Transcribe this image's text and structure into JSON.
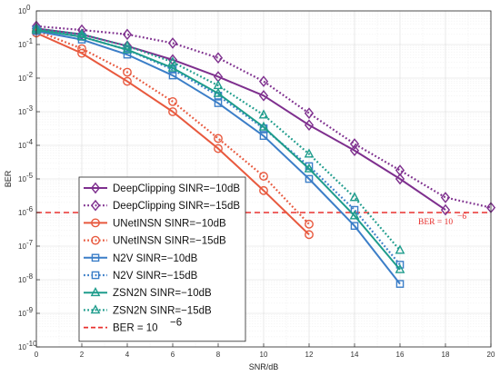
{
  "chart_data": {
    "type": "line",
    "title": "",
    "xlabel": "SNR/dB",
    "ylabel": "BER",
    "xlim": [
      0,
      20
    ],
    "ylim_log10": [
      -10,
      0
    ],
    "log_y": true,
    "grid": true,
    "legend_position": "lower-left",
    "x_ticks": [
      "0",
      "2",
      "4",
      "6",
      "8",
      "10",
      "12",
      "14",
      "16",
      "18",
      "20"
    ],
    "y_ticks": [
      {
        "base": "10",
        "exp": "0"
      },
      {
        "base": "10",
        "exp": "-1"
      },
      {
        "base": "10",
        "exp": "-2"
      },
      {
        "base": "10",
        "exp": "-3"
      },
      {
        "base": "10",
        "exp": "-4"
      },
      {
        "base": "10",
        "exp": "-5"
      },
      {
        "base": "10",
        "exp": "-6"
      },
      {
        "base": "10",
        "exp": "-7"
      },
      {
        "base": "10",
        "exp": "-8"
      },
      {
        "base": "10",
        "exp": "-9"
      },
      {
        "base": "10",
        "exp": "-10"
      }
    ],
    "series": [
      {
        "name": "DeepClipping SINR=−10dB",
        "color": "#7e2f8e",
        "dash": "solid",
        "marker": "diamond",
        "x": [
          0,
          2,
          4,
          6,
          8,
          10,
          12,
          14,
          16,
          18
        ],
        "y": [
          0.3,
          0.2,
          0.09,
          0.035,
          0.011,
          0.003,
          0.0004,
          7e-05,
          1e-05,
          1.2e-06
        ]
      },
      {
        "name": "DeepClipping SINR=−15dB",
        "color": "#7e2f8e",
        "dash": "dotted",
        "marker": "diamond",
        "x": [
          0,
          2,
          4,
          6,
          8,
          10,
          12,
          14,
          16,
          18,
          20
        ],
        "y": [
          0.35,
          0.27,
          0.2,
          0.11,
          0.04,
          0.008,
          0.0009,
          0.00011,
          1.8e-05,
          2.8e-06,
          1.4e-06
        ]
      },
      {
        "name": "UNetINSN SINR=−10dB",
        "color": "#e8593e",
        "dash": "solid",
        "marker": "circle",
        "x": [
          0,
          2,
          4,
          6,
          8,
          10,
          12
        ],
        "y": [
          0.22,
          0.055,
          0.008,
          0.001,
          8e-05,
          4.5e-06,
          2.2e-07
        ]
      },
      {
        "name": "UNetINSN SINR=−15dB",
        "color": "#e8593e",
        "dash": "dotted",
        "marker": "circle",
        "x": [
          0,
          2,
          4,
          6,
          8,
          10,
          12
        ],
        "y": [
          0.26,
          0.075,
          0.015,
          0.002,
          0.00016,
          1.2e-05,
          4.5e-07
        ]
      },
      {
        "name": "N2V SINR=−10dB",
        "color": "#3b7ec8",
        "dash": "solid",
        "marker": "square",
        "x": [
          0,
          2,
          4,
          6,
          8,
          10,
          12,
          14,
          16
        ],
        "y": [
          0.25,
          0.14,
          0.05,
          0.012,
          0.0018,
          0.00019,
          1e-05,
          4e-07,
          7.5e-09
        ]
      },
      {
        "name": "N2V SINR=−15dB",
        "color": "#3b7ec8",
        "dash": "dotted",
        "marker": "square",
        "x": [
          0,
          2,
          4,
          6,
          8,
          10,
          12,
          14,
          16
        ],
        "y": [
          0.28,
          0.17,
          0.07,
          0.018,
          0.003,
          0.00032,
          2.4e-05,
          1.2e-06,
          2.8e-08
        ]
      },
      {
        "name": "ZSN2N SINR=−10dB",
        "color": "#1e9c8c",
        "dash": "solid",
        "marker": "triangle",
        "x": [
          0,
          2,
          4,
          6,
          8,
          10,
          12,
          14,
          16
        ],
        "y": [
          0.27,
          0.17,
          0.07,
          0.02,
          0.0035,
          0.00035,
          2e-05,
          8e-07,
          2e-08
        ]
      },
      {
        "name": "ZSN2N SINR=−15dB",
        "color": "#1e9c8c",
        "dash": "dotted",
        "marker": "triangle",
        "x": [
          0,
          2,
          4,
          6,
          8,
          10,
          12,
          14,
          16
        ],
        "y": [
          0.3,
          0.2,
          0.09,
          0.03,
          0.006,
          0.0008,
          5.5e-05,
          2.8e-06,
          7.5e-08
        ]
      }
    ],
    "reference_line": {
      "legend_label": "BER = 10",
      "legend_exp": "−6",
      "value": 1e-06,
      "color": "#e8302e",
      "annotation": "BER = 10",
      "annotation_exp": "−6"
    }
  }
}
